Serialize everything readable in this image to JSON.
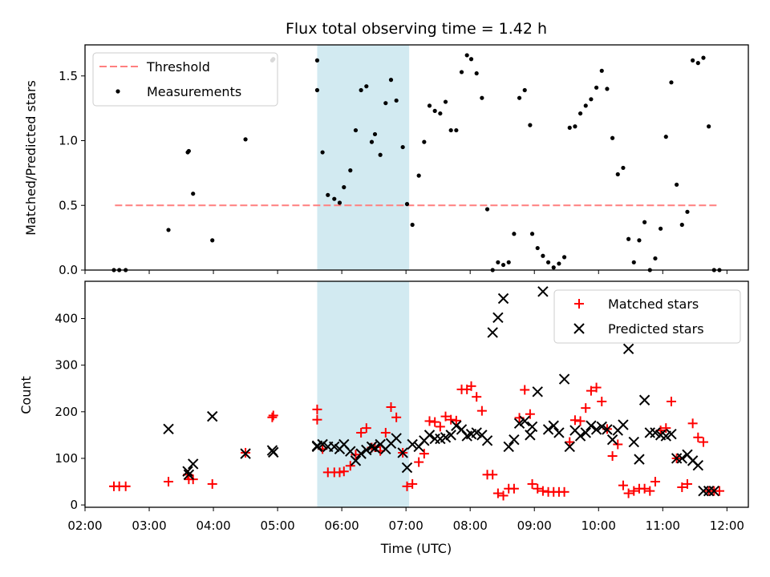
{
  "chart_data": [
    {
      "type": "scatter",
      "title": "Flux total observing time = 1.42 h",
      "xlabel": "",
      "ylabel": "Matched/Predicted stars",
      "xlim": [
        "02:00",
        "12:20"
      ],
      "ylim": [
        0,
        1.74
      ],
      "yticks": [
        "0.0",
        "0.5",
        "1.0",
        "1.5"
      ],
      "ytick_values": [
        0,
        0.5,
        1.0,
        1.5
      ],
      "xticks_labeled": false,
      "shaded_span": {
        "start": "05:37",
        "end": "07:03",
        "color": "#add8e6"
      },
      "legend": {
        "position": "upper left",
        "entries": [
          "Threshold",
          "Measurements"
        ]
      },
      "series": [
        {
          "name": "Threshold",
          "kind": "dashed-line",
          "color": "#ff7f7f",
          "x": [
            "02:28",
            "11:53"
          ],
          "y": [
            0.5,
            0.5
          ]
        },
        {
          "name": "Measurements",
          "kind": "points",
          "color": "#000000",
          "x": [
            "02:27",
            "02:32",
            "02:38",
            "03:18",
            "03:36",
            "03:37",
            "03:41",
            "03:59",
            "04:30",
            "04:55",
            "04:56",
            "05:37",
            "05:37",
            "05:42",
            "05:47",
            "05:53",
            "05:58",
            "06:02",
            "06:08",
            "06:13",
            "06:18",
            "06:23",
            "06:28",
            "06:31",
            "06:36",
            "06:41",
            "06:46",
            "06:51",
            "06:57",
            "07:01",
            "07:06",
            "07:12",
            "07:17",
            "07:22",
            "07:27",
            "07:32",
            "07:37",
            "07:42",
            "07:47",
            "07:52",
            "07:57",
            "08:01",
            "08:06",
            "08:11",
            "08:16",
            "08:21",
            "08:26",
            "08:31",
            "08:36",
            "08:41",
            "08:46",
            "08:51",
            "08:56",
            "08:58",
            "09:03",
            "09:08",
            "09:13",
            "09:18",
            "09:23",
            "09:28",
            "09:33",
            "09:38",
            "09:43",
            "09:48",
            "09:53",
            "09:58",
            "10:03",
            "10:08",
            "10:13",
            "10:18",
            "10:23",
            "10:28",
            "10:33",
            "10:38",
            "10:43",
            "10:48",
            "10:53",
            "10:58",
            "11:03",
            "11:08",
            "11:13",
            "11:18",
            "11:23",
            "11:28",
            "11:33",
            "11:38",
            "11:43",
            "11:48",
            "11:53"
          ],
          "y": [
            0.0,
            0.0,
            0.0,
            0.31,
            0.91,
            0.92,
            0.59,
            0.23,
            1.01,
            1.62,
            1.63,
            1.62,
            1.39,
            0.91,
            0.58,
            0.55,
            0.52,
            0.64,
            0.77,
            1.08,
            1.39,
            1.42,
            0.99,
            1.05,
            0.89,
            1.29,
            1.47,
            1.31,
            0.95,
            0.51,
            0.35,
            0.73,
            0.99,
            1.27,
            1.23,
            1.21,
            1.3,
            1.08,
            1.08,
            1.53,
            1.66,
            1.63,
            1.52,
            1.33,
            0.47,
            0.0,
            0.06,
            0.04,
            0.06,
            0.28,
            1.33,
            1.39,
            1.12,
            0.28,
            0.17,
            0.11,
            0.06,
            0.02,
            0.05,
            0.1,
            1.1,
            1.11,
            1.21,
            1.27,
            1.32,
            1.41,
            1.54,
            1.4,
            1.02,
            0.74,
            0.79,
            0.24,
            0.06,
            0.23,
            0.37,
            0.0,
            0.09,
            0.32,
            1.03,
            1.45,
            0.66,
            0.35,
            0.45,
            1.62,
            1.6,
            1.64,
            1.11,
            0.0,
            0.0
          ]
        }
      ]
    },
    {
      "type": "scatter",
      "title": "",
      "xlabel": "Time (UTC)",
      "ylabel": "Count",
      "xlim": [
        "02:00",
        "12:20"
      ],
      "ylim": [
        -5,
        480
      ],
      "xticks": [
        "02:00",
        "03:00",
        "04:00",
        "05:00",
        "06:00",
        "07:00",
        "08:00",
        "09:00",
        "10:00",
        "11:00",
        "12:00"
      ],
      "yticks": [
        "0",
        "100",
        "200",
        "300",
        "400"
      ],
      "ytick_values": [
        0,
        100,
        200,
        300,
        400
      ],
      "shaded_span": {
        "start": "05:37",
        "end": "07:03",
        "color": "#add8e6"
      },
      "legend": {
        "position": "upper right",
        "entries": [
          "Matched stars",
          "Predicted stars"
        ]
      },
      "series": [
        {
          "name": "Matched stars",
          "marker": "plus",
          "color": "#ff0000",
          "x": [
            "02:27",
            "02:32",
            "02:38",
            "03:18",
            "03:36",
            "03:37",
            "03:41",
            "03:59",
            "04:30",
            "04:55",
            "04:56",
            "05:37",
            "05:37",
            "05:42",
            "05:47",
            "05:53",
            "05:58",
            "06:02",
            "06:08",
            "06:13",
            "06:18",
            "06:23",
            "06:28",
            "06:31",
            "06:36",
            "06:41",
            "06:46",
            "06:51",
            "06:57",
            "07:01",
            "07:06",
            "07:12",
            "07:17",
            "07:22",
            "07:27",
            "07:32",
            "07:37",
            "07:42",
            "07:47",
            "07:52",
            "07:57",
            "08:01",
            "08:06",
            "08:11",
            "08:16",
            "08:21",
            "08:26",
            "08:31",
            "08:36",
            "08:41",
            "08:46",
            "08:51",
            "08:56",
            "08:58",
            "09:03",
            "09:08",
            "09:13",
            "09:18",
            "09:23",
            "09:28",
            "09:33",
            "09:38",
            "09:43",
            "09:48",
            "09:53",
            "09:58",
            "10:03",
            "10:08",
            "10:13",
            "10:18",
            "10:23",
            "10:28",
            "10:33",
            "10:38",
            "10:43",
            "10:48",
            "10:53",
            "10:58",
            "11:03",
            "11:08",
            "11:13",
            "11:18",
            "11:23",
            "11:28",
            "11:33",
            "11:38",
            "11:43",
            "11:48",
            "11:53"
          ],
          "y": [
            40,
            40,
            40,
            50,
            65,
            55,
            55,
            45,
            112,
            188,
            192,
            205,
            183,
            120,
            70,
            70,
            70,
            72,
            84,
            108,
            155,
            165,
            123,
            124,
            116,
            155,
            210,
            188,
            112,
            40,
            45,
            92,
            110,
            180,
            178,
            168,
            190,
            183,
            181,
            248,
            248,
            255,
            232,
            202,
            65,
            65,
            25,
            20,
            35,
            35,
            187,
            247,
            195,
            45,
            35,
            30,
            28,
            28,
            28,
            28,
            135,
            182,
            180,
            208,
            245,
            252,
            222,
            163,
            105,
            130,
            42,
            25,
            30,
            35,
            35,
            30,
            50,
            160,
            165,
            222,
            100,
            38,
            45,
            175,
            145,
            135,
            30,
            30,
            30
          ]
        },
        {
          "name": "Predicted stars",
          "marker": "x",
          "color": "#000000",
          "x": [
            "03:18",
            "03:36",
            "03:37",
            "03:41",
            "03:59",
            "04:30",
            "04:55",
            "04:56",
            "05:37",
            "05:37",
            "05:42",
            "05:47",
            "05:53",
            "05:58",
            "06:02",
            "06:08",
            "06:13",
            "06:18",
            "06:23",
            "06:28",
            "06:31",
            "06:36",
            "06:41",
            "06:46",
            "06:51",
            "06:57",
            "07:01",
            "07:06",
            "07:12",
            "07:17",
            "07:22",
            "07:27",
            "07:32",
            "07:37",
            "07:42",
            "07:47",
            "07:52",
            "07:57",
            "08:01",
            "08:06",
            "08:11",
            "08:16",
            "08:21",
            "08:26",
            "08:31",
            "08:36",
            "08:41",
            "08:46",
            "08:51",
            "08:56",
            "08:58",
            "09:03",
            "09:08",
            "09:13",
            "09:18",
            "09:23",
            "09:28",
            "09:33",
            "09:38",
            "09:43",
            "09:48",
            "09:53",
            "09:58",
            "10:03",
            "10:08",
            "10:13",
            "10:18",
            "10:23",
            "10:28",
            "10:33",
            "10:38",
            "10:43",
            "10:48",
            "10:53",
            "10:58",
            "11:03",
            "11:08",
            "11:13",
            "11:18",
            "11:23",
            "11:28",
            "11:33",
            "11:38",
            "11:43",
            "11:48"
          ],
          "y": [
            163,
            72,
            65,
            88,
            190,
            110,
            117,
            113,
            127,
            125,
            130,
            125,
            125,
            120,
            130,
            115,
            95,
            110,
            118,
            125,
            122,
            130,
            120,
            132,
            143,
            112,
            80,
            130,
            125,
            138,
            150,
            142,
            142,
            145,
            150,
            170,
            162,
            148,
            152,
            155,
            150,
            138,
            370,
            402,
            443,
            125,
            140,
            175,
            180,
            150,
            168,
            243,
            458,
            162,
            170,
            155,
            270,
            125,
            160,
            148,
            155,
            170,
            162,
            168,
            162,
            140,
            160,
            172,
            335,
            135,
            98,
            225,
            155,
            155,
            150,
            148,
            152,
            100,
            100,
            108,
            95,
            85,
            30,
            30,
            30
          ]
        }
      ]
    }
  ]
}
